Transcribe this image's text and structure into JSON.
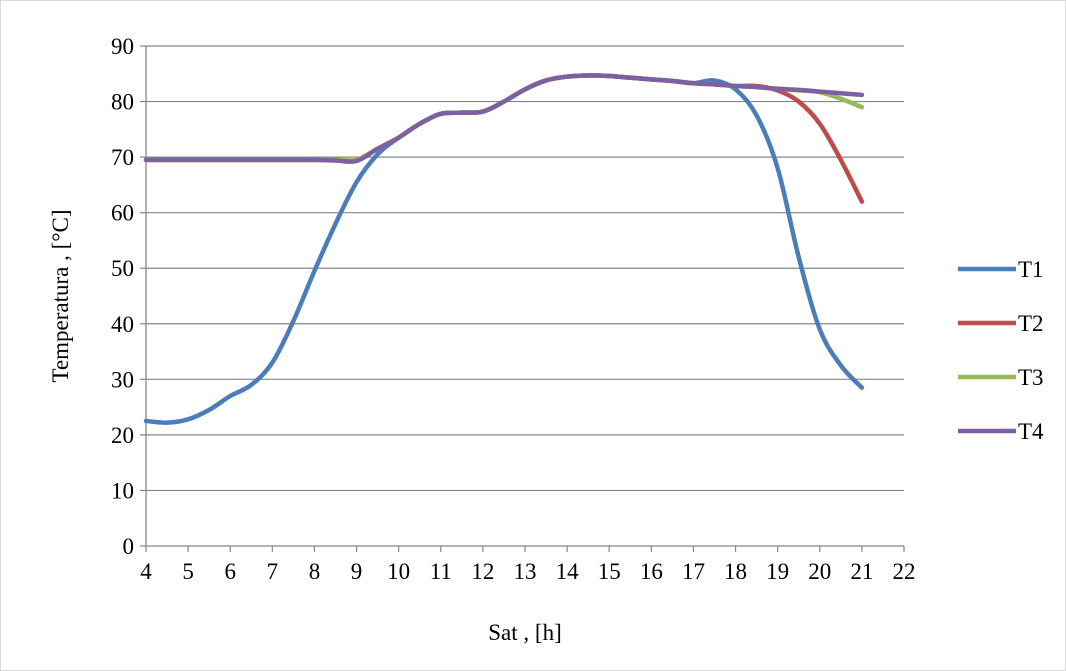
{
  "chart_data": {
    "type": "line",
    "title": "",
    "xlabel": "Sat , [h]",
    "ylabel": "Temperatura , [°C]",
    "xlim": [
      4,
      22
    ],
    "ylim": [
      0,
      90
    ],
    "x_ticks": [
      "4",
      "5",
      "6",
      "7",
      "8",
      "9",
      "10",
      "11",
      "12",
      "13",
      "14",
      "15",
      "16",
      "17",
      "18",
      "19",
      "20",
      "21",
      "22"
    ],
    "y_ticks": [
      "0",
      "10",
      "20",
      "30",
      "40",
      "50",
      "60",
      "70",
      "80",
      "90"
    ],
    "grid": "horizontal major gridlines",
    "legend_position": "right",
    "x": [
      4,
      4.5,
      5,
      5.5,
      6,
      6.5,
      7,
      7.5,
      8,
      8.5,
      9,
      9.5,
      10,
      10.5,
      11,
      11.5,
      12,
      12.5,
      13,
      13.5,
      14,
      14.5,
      15,
      15.5,
      16,
      16.5,
      17,
      17.5,
      18,
      18.5,
      19,
      19.5,
      20,
      20.5,
      21
    ],
    "series": [
      {
        "name": "T1",
        "color": "#4a7ebb",
        "values": [
          22.5,
          22.2,
          22.8,
          24.5,
          27.0,
          29.0,
          33.0,
          40.5,
          49.5,
          58.0,
          65.5,
          70.5,
          73.5,
          76.0,
          77.8,
          78.0,
          78.2,
          80.0,
          82.2,
          83.8,
          84.5,
          84.7,
          84.6,
          84.3,
          84.0,
          83.7,
          83.3,
          83.8,
          82.2,
          77.5,
          68.0,
          52.0,
          39.0,
          32.5,
          28.5
        ]
      },
      {
        "name": "T2",
        "color": "#be4b48",
        "values": [
          69.5,
          69.5,
          69.5,
          69.5,
          69.5,
          69.5,
          69.5,
          69.5,
          69.5,
          69.5,
          69.5,
          71.5,
          73.5,
          76.0,
          77.8,
          78.0,
          78.2,
          80.0,
          82.2,
          83.8,
          84.5,
          84.7,
          84.6,
          84.3,
          84.0,
          83.7,
          83.3,
          83.1,
          82.8,
          82.8,
          82.0,
          80.0,
          76.0,
          69.5,
          62.0
        ]
      },
      {
        "name": "T3",
        "color": "#98b954",
        "values": [
          69.5,
          69.5,
          69.5,
          69.5,
          69.5,
          69.5,
          69.5,
          69.5,
          69.5,
          69.5,
          69.5,
          71.5,
          73.5,
          76.0,
          77.8,
          78.0,
          78.2,
          80.0,
          82.2,
          83.8,
          84.5,
          84.7,
          84.6,
          84.3,
          84.0,
          83.7,
          83.3,
          83.1,
          82.8,
          82.6,
          82.3,
          82.0,
          81.7,
          80.5,
          79.0
        ]
      },
      {
        "name": "T4",
        "color": "#7d60a0",
        "values": [
          69.5,
          69.5,
          69.5,
          69.5,
          69.5,
          69.5,
          69.5,
          69.5,
          69.5,
          69.4,
          69.3,
          71.5,
          73.5,
          76.0,
          77.8,
          78.0,
          78.2,
          80.0,
          82.2,
          83.8,
          84.5,
          84.7,
          84.6,
          84.3,
          84.0,
          83.7,
          83.3,
          83.1,
          82.8,
          82.6,
          82.3,
          82.1,
          81.8,
          81.5,
          81.2
        ]
      }
    ]
  }
}
